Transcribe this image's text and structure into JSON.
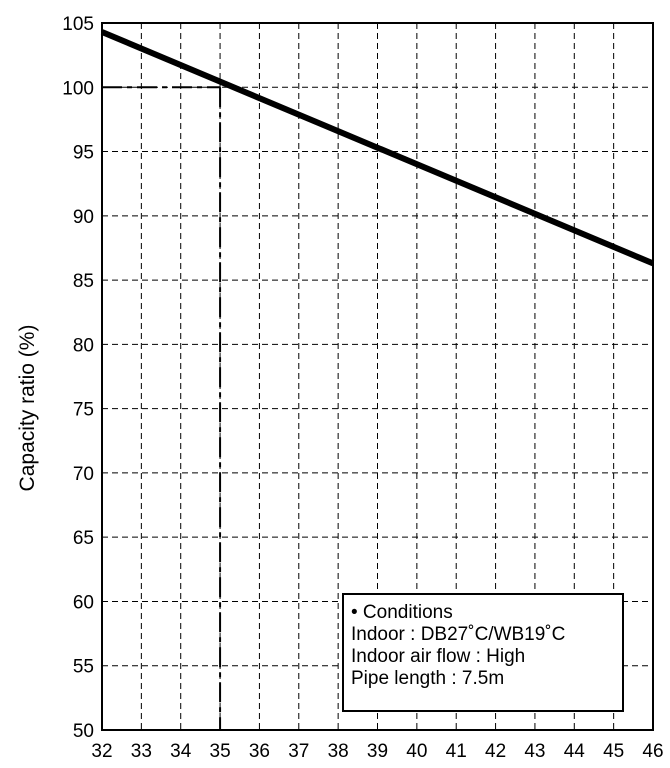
{
  "chart_data": {
    "type": "line",
    "title": "",
    "xlabel": "",
    "ylabel": "Capacity ratio (%)",
    "xlim": [
      32,
      46
    ],
    "ylim": [
      50,
      105
    ],
    "x_ticks": [
      "32",
      "33",
      "34",
      "35",
      "36",
      "37",
      "38",
      "39",
      "40",
      "41",
      "42",
      "43",
      "44",
      "45",
      "46"
    ],
    "y_ticks": [
      "50",
      "55",
      "60",
      "65",
      "70",
      "75",
      "80",
      "85",
      "90",
      "95",
      "100",
      "105"
    ],
    "grid": true,
    "series": [
      {
        "name": "",
        "x": [
          32,
          46
        ],
        "y": [
          104.3,
          86.3
        ],
        "color": "#000000"
      }
    ],
    "reference": {
      "x": 35,
      "y": 100
    },
    "annotation": {
      "lines": [
        "• Conditions",
        "Indoor : DB27˚C/WB19˚C",
        "Indoor air flow : High",
        "Pipe length : 7.5m"
      ],
      "position": "bottom-right"
    }
  }
}
